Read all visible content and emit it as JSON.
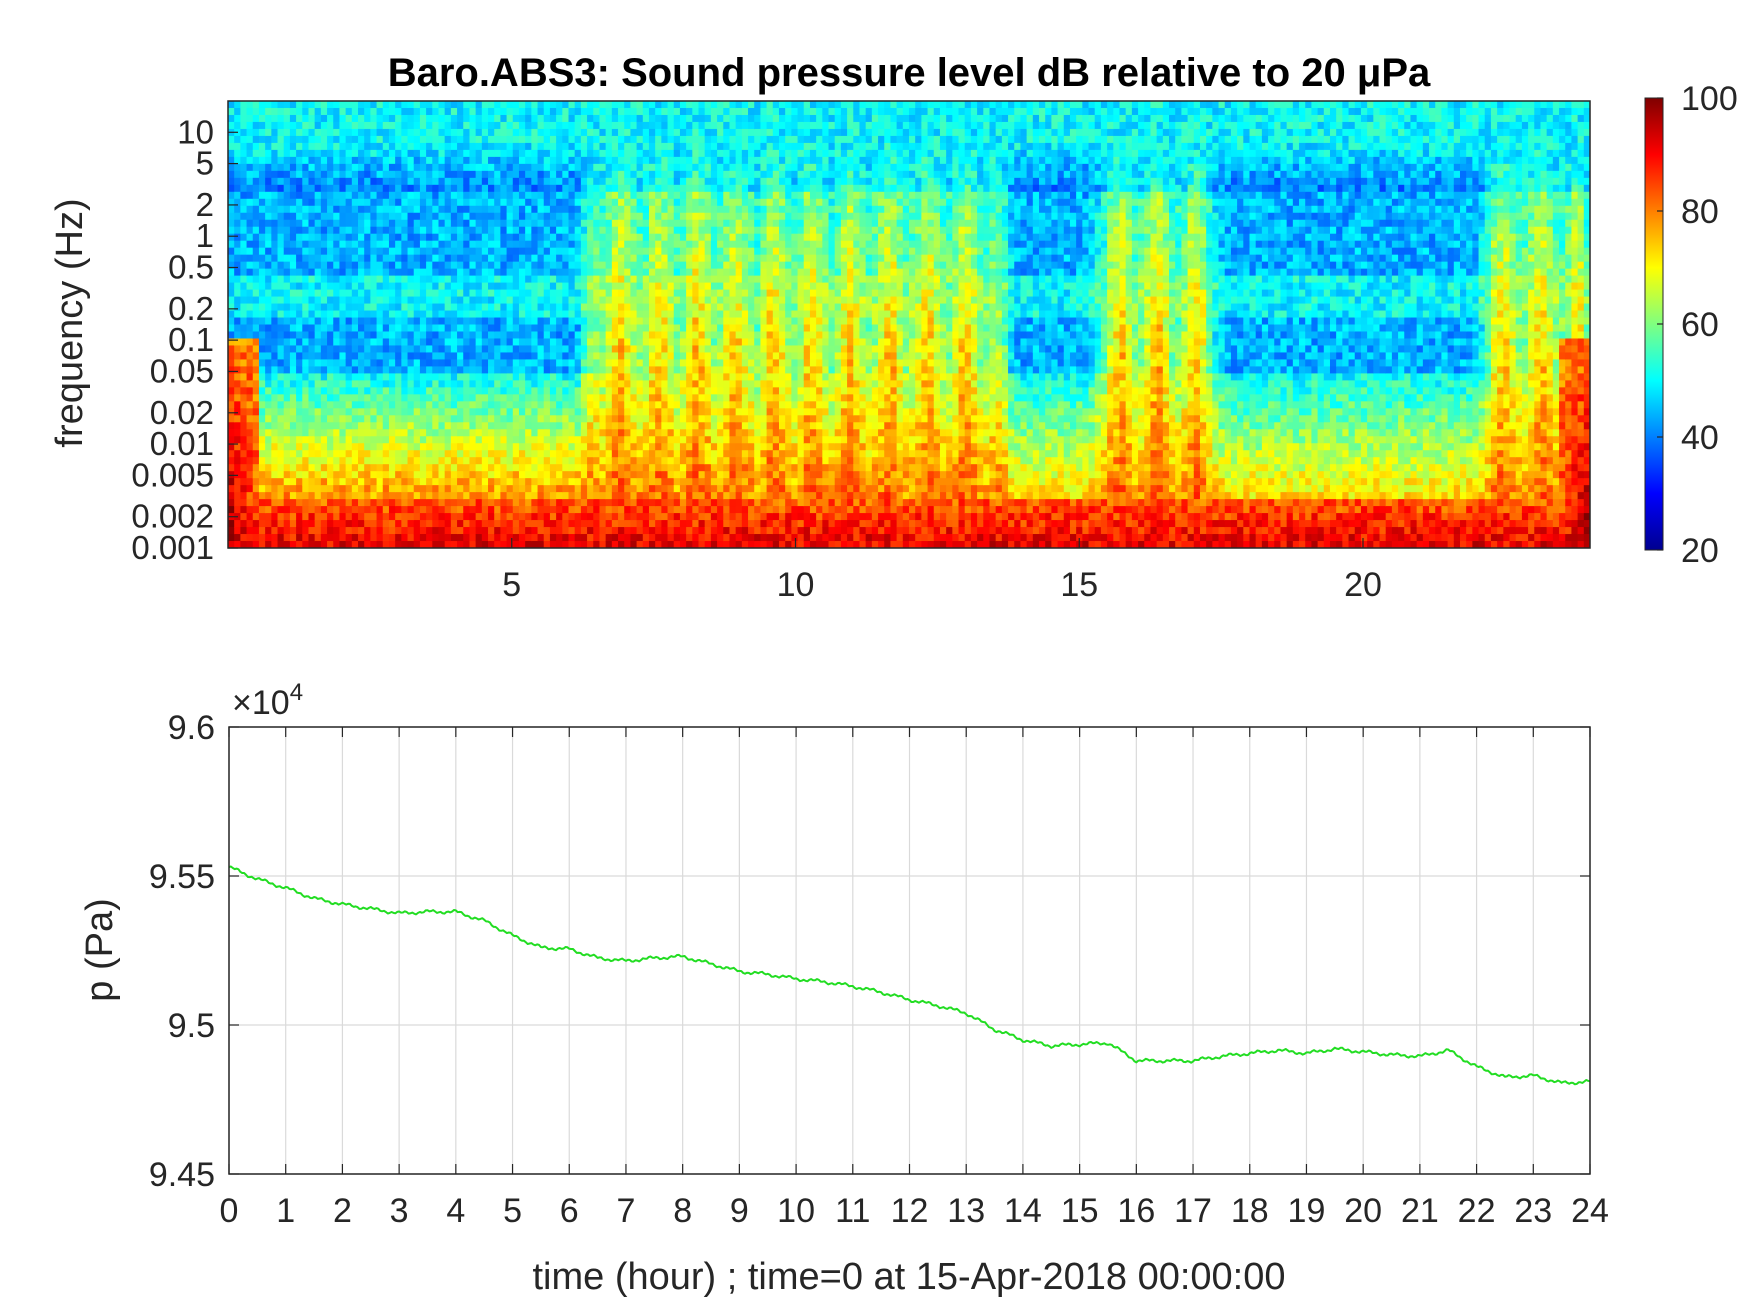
{
  "chart_data": [
    {
      "type": "heatmap",
      "title": "Baro.ABS3: Sound pressure level dB relative to 20 μPa",
      "ylabel": "frequency (Hz)",
      "xlabel": "",
      "xlim": [
        0,
        24
      ],
      "x_ticks": [
        "5",
        "10",
        "15",
        "20"
      ],
      "y_scale": "log",
      "ylim": [
        0.001,
        20
      ],
      "y_ticks": [
        "0.001",
        "0.002",
        "0.005",
        "0.01",
        "0.02",
        "0.05",
        "0.1",
        "0.2",
        "0.5",
        "1",
        "2",
        "5",
        "10"
      ],
      "colormap": "jet",
      "clim": [
        20,
        100
      ],
      "colorbar_ticks": [
        "20",
        "40",
        "60",
        "80",
        "100"
      ],
      "colorbar_location": "right",
      "band_high_freq_db": 50,
      "band_quiet_db": 40,
      "active_periods_hours": [
        [
          6.5,
          13.5
        ],
        [
          15.5,
          17.2
        ],
        [
          22.3,
          23.8
        ]
      ],
      "grid": false
    },
    {
      "type": "line",
      "xlabel": "time (hour) ; time=0 at 15-Apr-2018 00:00:00",
      "ylabel": "p (Pa)",
      "xlim": [
        0,
        24
      ],
      "ylim": [
        94500,
        96000
      ],
      "x_ticks": [
        "0",
        "1",
        "2",
        "3",
        "4",
        "5",
        "6",
        "7",
        "8",
        "9",
        "10",
        "11",
        "12",
        "13",
        "14",
        "15",
        "16",
        "17",
        "18",
        "19",
        "20",
        "21",
        "22",
        "23",
        "24"
      ],
      "y_ticks": [
        "9.45",
        "9.5",
        "9.55",
        "9.6"
      ],
      "y_exponent_label": "×10",
      "y_exponent_power": "4",
      "grid": true,
      "series": [
        {
          "color": "#22dd22",
          "x": [
            0,
            0.5,
            1,
            1.5,
            2,
            2.5,
            3,
            3.5,
            4,
            4.5,
            5,
            5.5,
            6,
            6.5,
            7,
            7.5,
            8,
            8.5,
            9,
            9.5,
            10,
            10.5,
            11,
            11.5,
            12,
            12.5,
            13,
            13.5,
            14,
            14.5,
            15,
            15.5,
            16,
            16.5,
            17,
            17.5,
            18,
            18.5,
            19,
            19.5,
            20,
            20.5,
            21,
            21.5,
            22,
            22.5,
            23,
            23.5,
            24
          ],
          "values": [
            95530,
            95490,
            95460,
            95425,
            95405,
            95390,
            95375,
            95380,
            95380,
            95350,
            95300,
            95260,
            95255,
            95225,
            95215,
            95225,
            95230,
            95205,
            95180,
            95170,
            95155,
            95145,
            95130,
            95110,
            95085,
            95065,
            95040,
            94985,
            94950,
            94930,
            94935,
            94940,
            94880,
            94880,
            94880,
            94895,
            94905,
            94915,
            94905,
            94920,
            94910,
            94900,
            94895,
            94915,
            94860,
            94825,
            94830,
            94805,
            94810
          ]
        }
      ]
    }
  ]
}
